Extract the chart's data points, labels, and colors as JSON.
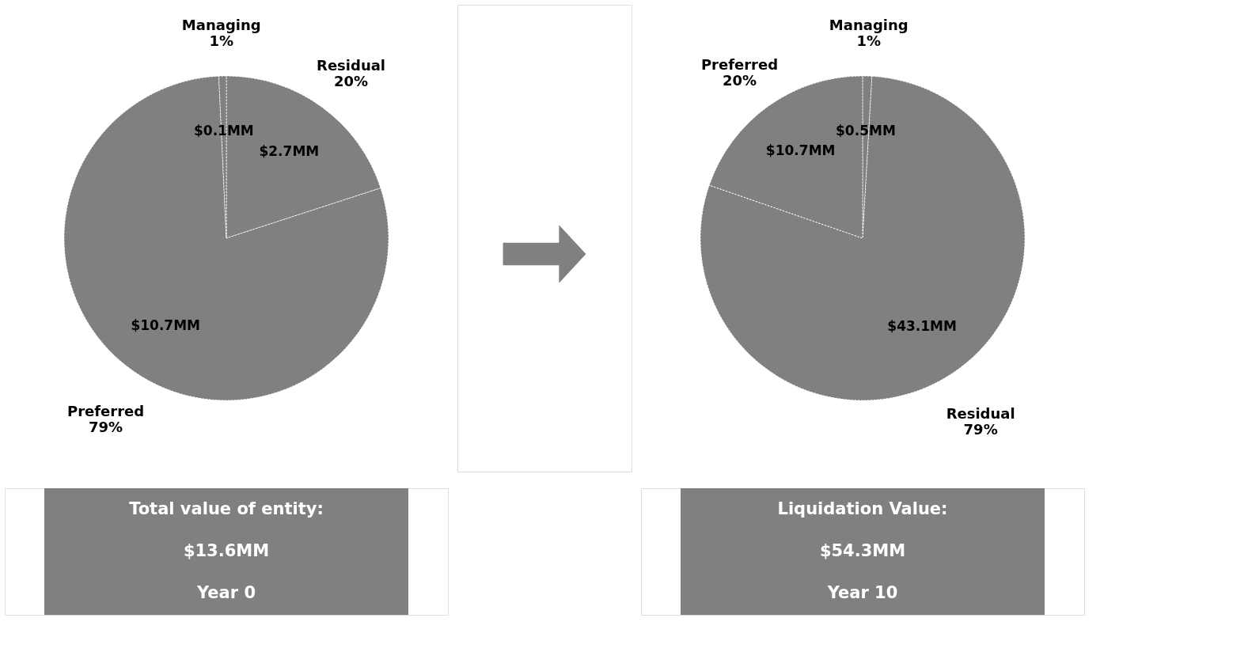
{
  "chart_data": [
    {
      "type": "pie",
      "categories": [
        "Residual 20%",
        "Preferred 79%",
        "Managing 1%"
      ],
      "values": [
        2.7,
        10.7,
        0.1
      ],
      "colors": [
        "#808080",
        "#808080",
        "#808080"
      ],
      "value_labels": [
        "$2.7MM",
        "$10.7MM",
        "$0.1MM"
      ],
      "annotations": [
        "Total value of entity:",
        "$13.6MM",
        "Year 0"
      ]
    },
    {
      "type": "pie",
      "categories": [
        "Managing 1%",
        "Residual 79%",
        "Preferred 20%"
      ],
      "values": [
        0.5,
        43.1,
        10.7
      ],
      "colors": [
        "#808080",
        "#808080",
        "#808080"
      ],
      "value_labels": [
        "$0.5MM",
        "$43.1MM",
        "$10.7MM"
      ],
      "annotations": [
        "Liquidation Value:",
        "$54.3MM",
        "Year 10"
      ]
    }
  ]
}
